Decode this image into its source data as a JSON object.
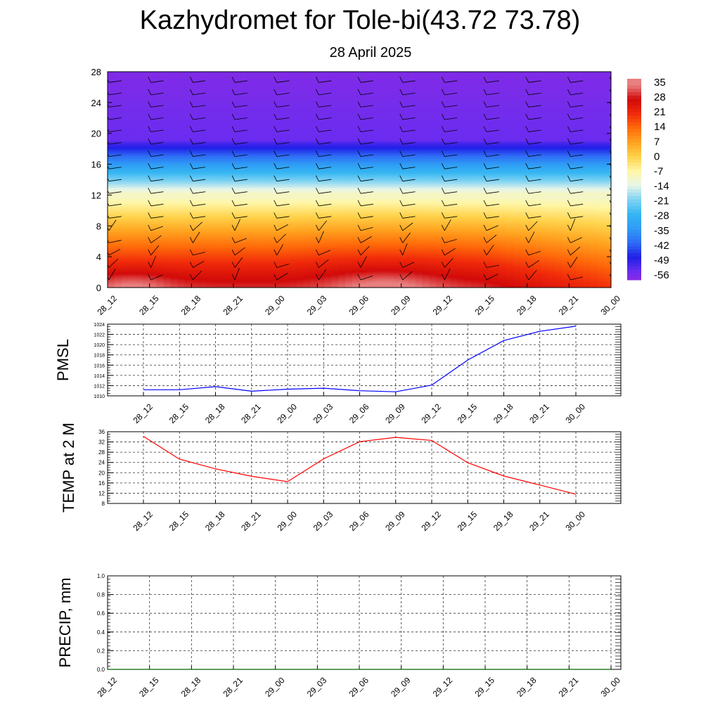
{
  "header": {
    "title": "Kazhydromet for Tole-bi(43.72 73.78)",
    "subtitle": "28 April 2025"
  },
  "chart_data": [
    {
      "type": "heatmap",
      "name": "vertical-temperature-section",
      "x_ticks": [
        "28_12",
        "28_15",
        "28_18",
        "28_21",
        "29_00",
        "29_03",
        "29_06",
        "29_09",
        "29_12",
        "29_15",
        "29_18",
        "29_21",
        "30_00"
      ],
      "y_ticks": [
        0,
        4,
        8,
        12,
        16,
        20,
        24,
        28
      ],
      "ylim": [
        0,
        28
      ],
      "colorbar_labels": [
        "35",
        "28",
        "21",
        "14",
        "7",
        "0",
        "-7",
        "-14",
        "-21",
        "-28",
        "-35",
        "-42",
        "-49",
        "-56"
      ],
      "colorbar_range": [
        -60,
        38
      ],
      "color_stops": [
        {
          "value": -60,
          "color": "#8a2be2"
        },
        {
          "value": -56,
          "color": "#6a2cf0"
        },
        {
          "value": -49,
          "color": "#1f1fe6"
        },
        {
          "value": -42,
          "color": "#2f6cf5"
        },
        {
          "value": -35,
          "color": "#2f9cf5"
        },
        {
          "value": -28,
          "color": "#35b6f2"
        },
        {
          "value": -21,
          "color": "#7fd3f3"
        },
        {
          "value": -14,
          "color": "#e8f6e8"
        },
        {
          "value": -7,
          "color": "#fff6a6"
        },
        {
          "value": 0,
          "color": "#ffd24a"
        },
        {
          "value": 7,
          "color": "#ffa21f"
        },
        {
          "value": 14,
          "color": "#ff6a0a"
        },
        {
          "value": 21,
          "color": "#f02a0a"
        },
        {
          "value": 28,
          "color": "#d10a0a"
        },
        {
          "value": 35,
          "color": "#e88080"
        }
      ],
      "overlay": "wind barbs"
    },
    {
      "type": "line",
      "name": "pmsl",
      "ylabel": "PMSL",
      "categories": [
        "28_12",
        "28_15",
        "28_18",
        "28_21",
        "29_00",
        "29_03",
        "29_06",
        "29_09",
        "29_12",
        "29_15",
        "29_18",
        "29_21",
        "30_00"
      ],
      "series": [
        {
          "values": [
            1011.2,
            1011.2,
            1011.8,
            1010.9,
            1011.3,
            1011.5,
            1011.0,
            1010.8,
            1012.1,
            1017.0,
            1020.8,
            1022.6,
            1023.6
          ],
          "color": "#0000ff"
        }
      ],
      "ylim": [
        1010,
        1024
      ],
      "y_ticks": [
        1010,
        1012,
        1014,
        1016,
        1018,
        1020,
        1022,
        1024
      ],
      "grid": true
    },
    {
      "type": "line",
      "name": "temp-2m",
      "ylabel": "TEMP at 2 M",
      "categories": [
        "28_12",
        "28_15",
        "28_18",
        "28_21",
        "29_00",
        "29_03",
        "29_06",
        "29_09",
        "29_12",
        "29_15",
        "29_18",
        "29_21",
        "30_00"
      ],
      "series": [
        {
          "values": [
            34.2,
            25.3,
            21.5,
            18.6,
            16.5,
            25.4,
            32.1,
            33.8,
            32.6,
            23.9,
            18.7,
            15.2,
            11.6
          ],
          "color": "#ff0000"
        }
      ],
      "ylim": [
        8,
        36
      ],
      "y_ticks": [
        8,
        12,
        16,
        20,
        24,
        28,
        32,
        36
      ],
      "grid": true
    },
    {
      "type": "line",
      "name": "precip",
      "ylabel": "PRECIP, mm",
      "categories": [
        "28_12",
        "28_15",
        "28_18",
        "28_21",
        "29_00",
        "29_03",
        "29_06",
        "29_09",
        "29_12",
        "29_15",
        "29_18",
        "29_21",
        "30_00"
      ],
      "series": [
        {
          "values": [
            0,
            0,
            0,
            0,
            0,
            0,
            0,
            0,
            0,
            0,
            0,
            0,
            0
          ],
          "color": "#006400"
        }
      ],
      "ylim": [
        0,
        1.0
      ],
      "y_ticks": [
        "0.0",
        "0.2",
        "0.4",
        "0.6",
        "0.8",
        "1.0"
      ],
      "grid": true
    }
  ]
}
